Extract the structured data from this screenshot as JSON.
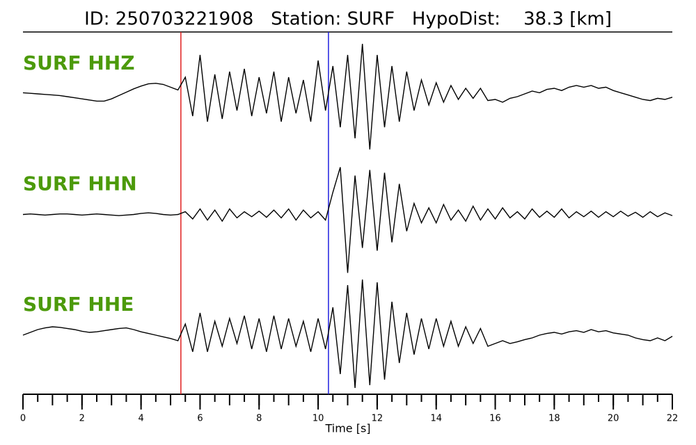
{
  "chart_data": {
    "type": "line",
    "title": "ID: 250703221908   Station: SURF   HypoDist:    38.3 [km]",
    "x_label": "Time [s]",
    "xlim": [
      0,
      22
    ],
    "xticks": [
      0,
      2,
      4,
      6,
      8,
      10,
      12,
      14,
      16,
      18,
      20,
      22
    ],
    "minor_tick_step": 0.5,
    "label_color": "#4c9a0a",
    "picks": [
      {
        "x": 5.35,
        "color": "#e02020"
      },
      {
        "x": 10.35,
        "color": "#2020e0"
      }
    ],
    "x": [
      0,
      0.25,
      0.5,
      0.75,
      1,
      1.25,
      1.5,
      1.75,
      2,
      2.25,
      2.5,
      2.75,
      3,
      3.25,
      3.5,
      3.75,
      4,
      4.25,
      4.5,
      4.75,
      5,
      5.25,
      5.5,
      5.75,
      6,
      6.25,
      6.5,
      6.75,
      7,
      7.25,
      7.5,
      7.75,
      8,
      8.25,
      8.5,
      8.75,
      9,
      9.25,
      9.5,
      9.75,
      10,
      10.25,
      10.5,
      10.75,
      11,
      11.25,
      11.5,
      11.75,
      12,
      12.25,
      12.5,
      12.75,
      13,
      13.25,
      13.5,
      13.75,
      14,
      14.25,
      14.5,
      14.75,
      15,
      15.25,
      15.5,
      15.75,
      16,
      16.25,
      16.5,
      16.75,
      17,
      17.25,
      17.5,
      17.75,
      18,
      18.25,
      18.5,
      18.75,
      19,
      19.25,
      19.5,
      19.75,
      20,
      20.25,
      20.5,
      20.75,
      21,
      21.25,
      21.5,
      21.75,
      22
    ],
    "series": [
      {
        "name": "SURF HHZ",
        "color": "#000000",
        "values": [
          0.02,
          0.01,
          0.0,
          -0.01,
          -0.02,
          -0.03,
          -0.05,
          -0.07,
          -0.09,
          -0.11,
          -0.13,
          -0.13,
          -0.09,
          -0.03,
          0.03,
          0.09,
          0.14,
          0.18,
          0.19,
          0.17,
          0.12,
          0.07,
          0.3,
          -0.4,
          0.7,
          -0.5,
          0.35,
          -0.45,
          0.4,
          -0.3,
          0.45,
          -0.4,
          0.3,
          -0.35,
          0.4,
          -0.5,
          0.3,
          -0.35,
          0.25,
          -0.5,
          0.6,
          -0.3,
          0.5,
          -0.6,
          0.7,
          -0.8,
          0.9,
          -1.0,
          0.7,
          -0.6,
          0.5,
          -0.5,
          0.4,
          -0.3,
          0.25,
          -0.2,
          0.2,
          -0.15,
          0.15,
          -0.1,
          0.1,
          -0.08,
          0.1,
          -0.12,
          -0.1,
          -0.15,
          -0.08,
          -0.05,
          0.0,
          0.05,
          0.02,
          0.08,
          0.1,
          0.06,
          0.12,
          0.15,
          0.12,
          0.15,
          0.1,
          0.12,
          0.06,
          0.02,
          -0.02,
          -0.06,
          -0.1,
          -0.12,
          -0.08,
          -0.1,
          -0.06
        ]
      },
      {
        "name": "SURF HHN",
        "color": "#000000",
        "values": [
          0,
          0.01,
          0.0,
          -0.01,
          0.0,
          0.01,
          0.01,
          0.0,
          -0.01,
          0.0,
          0.01,
          0.0,
          -0.01,
          -0.02,
          -0.01,
          0.0,
          0.02,
          0.03,
          0.02,
          0.0,
          -0.01,
          0.0,
          0.05,
          -0.08,
          0.1,
          -0.1,
          0.08,
          -0.12,
          0.1,
          -0.06,
          0.05,
          -0.04,
          0.06,
          -0.05,
          0.08,
          -0.06,
          0.1,
          -0.1,
          0.08,
          -0.06,
          0.05,
          -0.1,
          0.4,
          0.85,
          -1.05,
          0.7,
          -0.6,
          0.8,
          -0.65,
          0.75,
          -0.5,
          0.55,
          -0.3,
          0.2,
          -0.15,
          0.12,
          -0.15,
          0.18,
          -0.1,
          0.08,
          -0.12,
          0.15,
          -0.1,
          0.1,
          -0.08,
          0.12,
          -0.06,
          0.05,
          -0.08,
          0.1,
          -0.05,
          0.06,
          -0.05,
          0.1,
          -0.06,
          0.05,
          -0.04,
          0.06,
          -0.05,
          0.05,
          -0.04,
          0.06,
          -0.03,
          0.04,
          -0.05,
          0.05,
          -0.04,
          0.03,
          -0.02
        ]
      },
      {
        "name": "SURF HHE",
        "color": "#000000",
        "values": [
          0.0,
          0.05,
          0.1,
          0.13,
          0.15,
          0.14,
          0.12,
          0.1,
          0.07,
          0.05,
          0.06,
          0.08,
          0.1,
          0.12,
          0.13,
          0.1,
          0.06,
          0.03,
          0.0,
          -0.03,
          -0.06,
          -0.1,
          0.2,
          -0.3,
          0.4,
          -0.3,
          0.25,
          -0.2,
          0.3,
          -0.15,
          0.35,
          -0.25,
          0.3,
          -0.3,
          0.35,
          -0.25,
          0.3,
          -0.2,
          0.25,
          -0.3,
          0.3,
          -0.25,
          0.5,
          -0.7,
          0.9,
          -0.95,
          1.0,
          -0.9,
          0.95,
          -0.8,
          0.6,
          -0.5,
          0.4,
          -0.35,
          0.3,
          -0.25,
          0.3,
          -0.2,
          0.25,
          -0.2,
          0.15,
          -0.15,
          0.12,
          -0.2,
          -0.15,
          -0.1,
          -0.15,
          -0.12,
          -0.08,
          -0.05,
          0.0,
          0.03,
          0.05,
          0.02,
          0.06,
          0.08,
          0.05,
          0.1,
          0.06,
          0.08,
          0.04,
          0.02,
          0.0,
          -0.05,
          -0.08,
          -0.1,
          -0.05,
          -0.1,
          -0.02
        ]
      }
    ]
  }
}
